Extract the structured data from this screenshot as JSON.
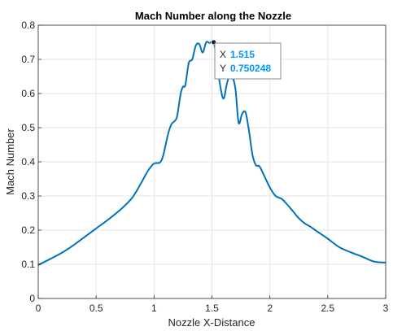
{
  "chart_data": {
    "type": "line",
    "title": "Mach Number along the Nozzle",
    "xlabel": "Nozzle X-Distance",
    "ylabel": "Mach Number",
    "xlim": [
      0,
      3
    ],
    "ylim": [
      0,
      0.8
    ],
    "xticks": [
      0,
      0.5,
      1,
      1.5,
      2,
      2.5,
      3
    ],
    "xtick_labels": [
      "0",
      "0.5",
      "1",
      "1.5",
      "2",
      "2.5",
      "3"
    ],
    "yticks": [
      0,
      0.1,
      0.2,
      0.3,
      0.4,
      0.5,
      0.6,
      0.7,
      0.8
    ],
    "ytick_labels": [
      "0",
      "0.1",
      "0.2",
      "0.3",
      "0.4",
      "0.5",
      "0.6",
      "0.7",
      "0.8"
    ],
    "grid": true,
    "line_color": "#0072BD",
    "series": [
      {
        "x": [
          0,
          0.1,
          0.2,
          0.3,
          0.4,
          0.5,
          0.6,
          0.7,
          0.8,
          0.85,
          0.9,
          0.95,
          1.0,
          1.05,
          1.08,
          1.12,
          1.15,
          1.18,
          1.2,
          1.23,
          1.25,
          1.27,
          1.3,
          1.33,
          1.36,
          1.39,
          1.42,
          1.45,
          1.48,
          1.515,
          1.54,
          1.57,
          1.6,
          1.63,
          1.66,
          1.7,
          1.73,
          1.76,
          1.79,
          1.82,
          1.85,
          1.88,
          1.91,
          1.95,
          2.0,
          2.05,
          2.1,
          2.15,
          2.2,
          2.25,
          2.3,
          2.35,
          2.4,
          2.5,
          2.6,
          2.7,
          2.8,
          2.9,
          3.0
        ],
        "y": [
          0.098,
          0.115,
          0.133,
          0.155,
          0.18,
          0.205,
          0.23,
          0.257,
          0.29,
          0.315,
          0.345,
          0.375,
          0.395,
          0.398,
          0.42,
          0.48,
          0.51,
          0.52,
          0.535,
          0.6,
          0.62,
          0.625,
          0.69,
          0.7,
          0.74,
          0.745,
          0.72,
          0.75,
          0.748,
          0.750248,
          0.7,
          0.625,
          0.585,
          0.63,
          0.655,
          0.62,
          0.515,
          0.54,
          0.545,
          0.49,
          0.42,
          0.39,
          0.387,
          0.36,
          0.325,
          0.3,
          0.292,
          0.275,
          0.255,
          0.235,
          0.22,
          0.21,
          0.198,
          0.175,
          0.15,
          0.135,
          0.122,
          0.108,
          0.105
        ]
      }
    ],
    "datatip": {
      "x_label": "X",
      "x_value": "1.515",
      "y_label": "Y",
      "y_value": "0.750248",
      "value_color": "#0096FF"
    }
  }
}
